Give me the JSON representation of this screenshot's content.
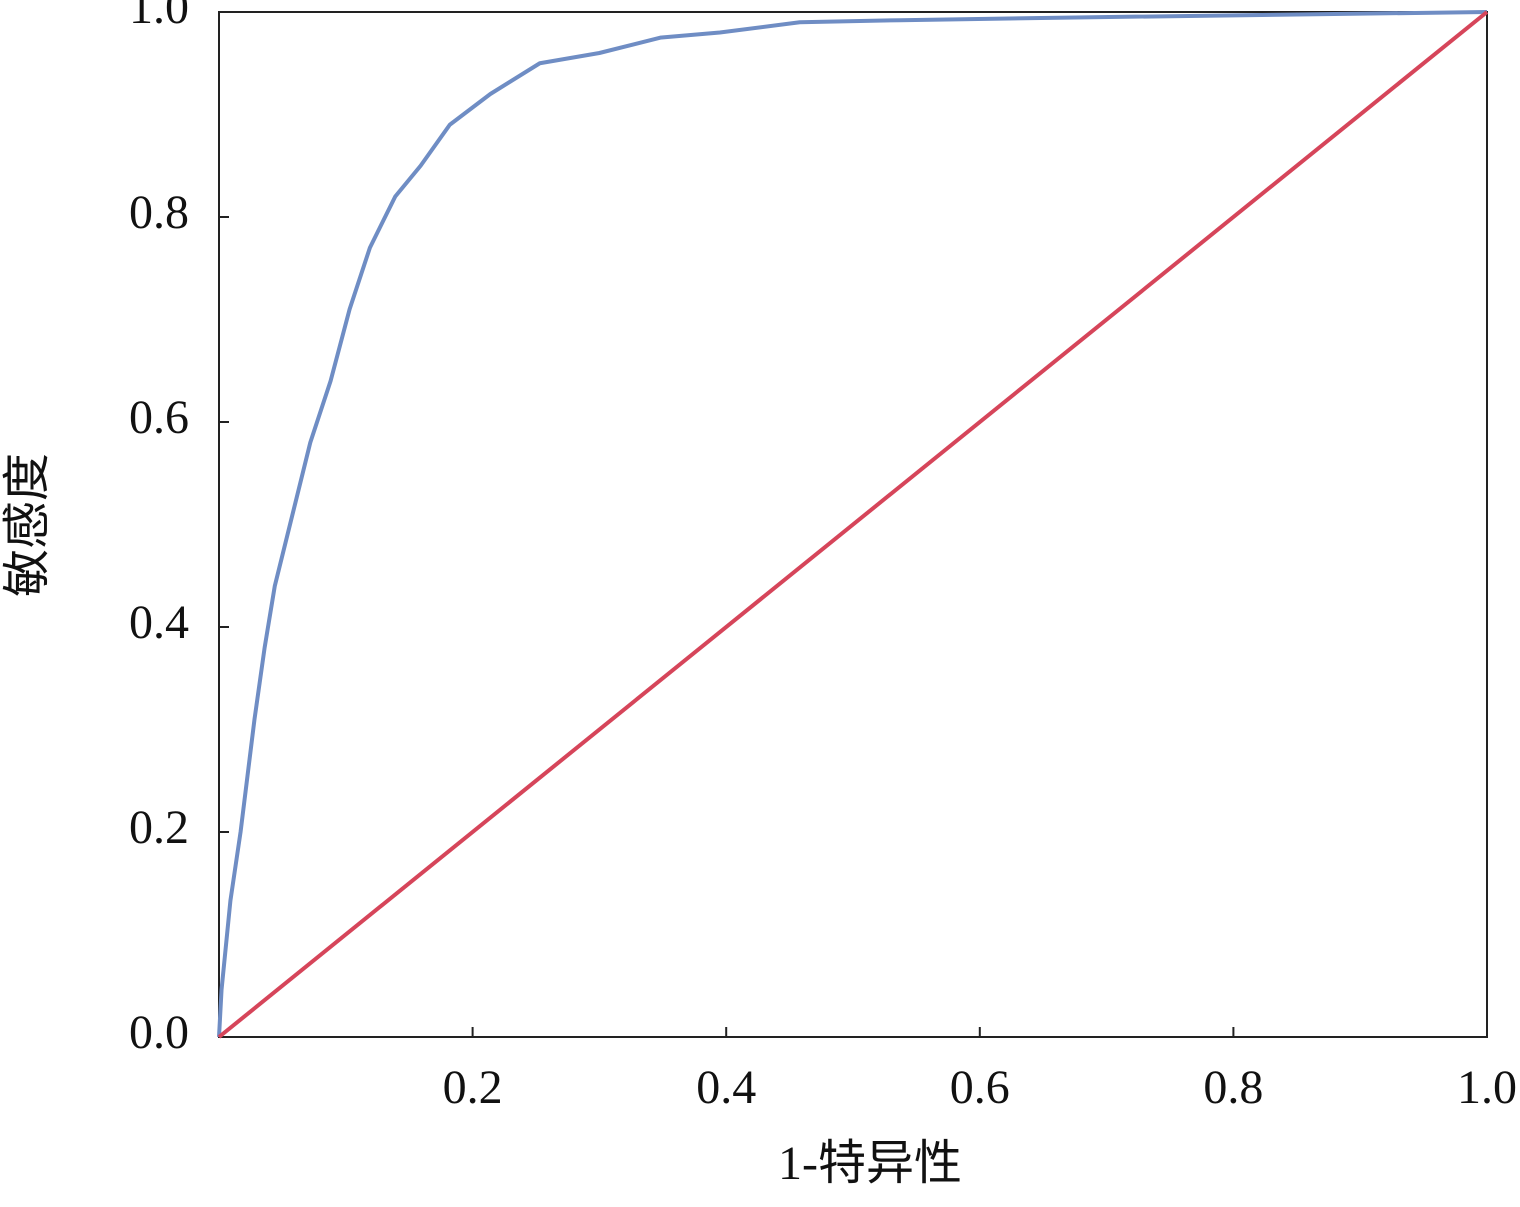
{
  "chart_data": {
    "type": "line",
    "x_label": "1-特异性",
    "y_label": "敏感度",
    "xlim": [
      0,
      1
    ],
    "ylim": [
      0,
      1
    ],
    "xticks": [
      0.2,
      0.4,
      0.6,
      0.8,
      {
        "value": 1,
        "label": "1.0"
      }
    ],
    "yticks": [
      {
        "value": 0,
        "label": "0.0"
      },
      0.2,
      0.4,
      0.6,
      0.8,
      {
        "value": 1,
        "label": "1.0"
      }
    ],
    "grid": false,
    "series": [
      {
        "color": "#6f8dc4",
        "x": [
          0,
          0.002,
          0.009,
          0.017,
          0.023,
          0.028,
          0.036,
          0.044,
          0.056,
          0.072,
          0.088,
          0.103,
          0.119,
          0.139,
          0.159,
          0.182,
          0.214,
          0.253,
          0.3,
          0.348,
          0.395,
          0.458,
          0.537,
          0.695,
          1
        ],
        "values": [
          0,
          0.046,
          0.133,
          0.2,
          0.26,
          0.31,
          0.38,
          0.44,
          0.5,
          0.58,
          0.64,
          0.71,
          0.77,
          0.82,
          0.85,
          0.89,
          0.92,
          0.95,
          0.96,
          0.975,
          0.98,
          0.99,
          0.992,
          0.995,
          1
        ]
      },
      {
        "color": "#d6455a",
        "x": [
          0,
          1
        ],
        "values": [
          0,
          1
        ]
      }
    ]
  }
}
